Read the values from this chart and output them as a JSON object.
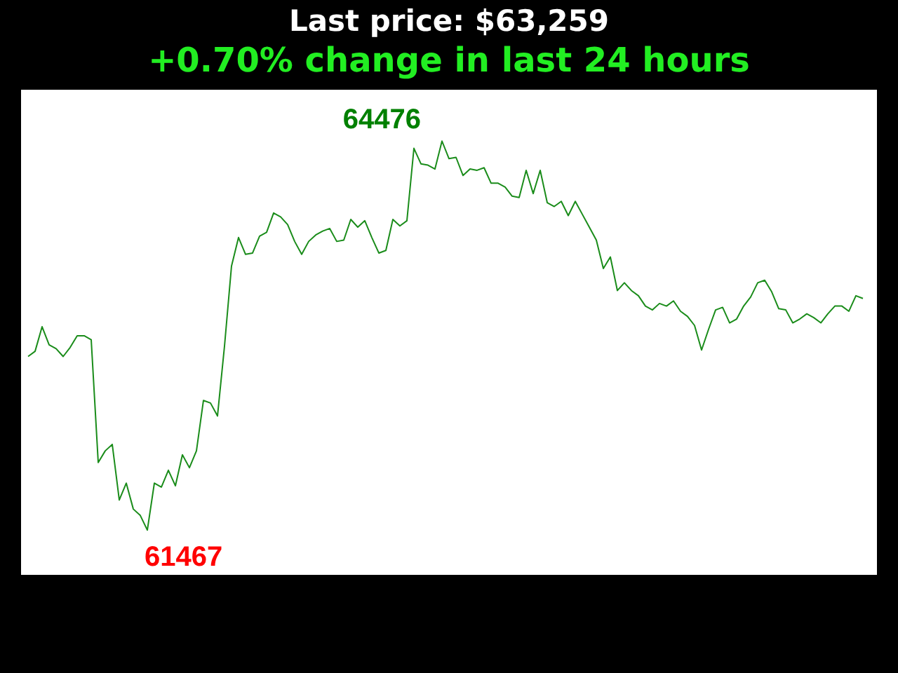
{
  "chart_data": {
    "type": "line",
    "title": "Last price: $63,259",
    "subtitle": "+0.70% change in last 24 hours",
    "categories": [
      null,
      null,
      null,
      null,
      null,
      null,
      null,
      null,
      null,
      null,
      null,
      null,
      null,
      null,
      null,
      null,
      null,
      null,
      null,
      null,
      null,
      null,
      null,
      null,
      null,
      null,
      null,
      null,
      null,
      null,
      null,
      null,
      null,
      null,
      null,
      null,
      null,
      null,
      null,
      null,
      null,
      null,
      null,
      null,
      null,
      null,
      null,
      null,
      null,
      null,
      null,
      null,
      null,
      null,
      null,
      null,
      null,
      null,
      null,
      null,
      null,
      null,
      null,
      null,
      null,
      null,
      null,
      null,
      null,
      null,
      null,
      null,
      null,
      null,
      null,
      null,
      null,
      null,
      null,
      null,
      null,
      null,
      null,
      null,
      null,
      null,
      null,
      null,
      null,
      null,
      null,
      null,
      null,
      null,
      null,
      null,
      null,
      null,
      null,
      null,
      null,
      null,
      null,
      null,
      null,
      null,
      null,
      null,
      null,
      null,
      null,
      null,
      null,
      null,
      null,
      null,
      null,
      null,
      null,
      null
    ],
    "values": [
      62810,
      62850,
      63040,
      62900,
      62870,
      62810,
      62880,
      62970,
      62970,
      62940,
      61990,
      62080,
      62130,
      61700,
      61830,
      61630,
      61580,
      61467,
      61830,
      61800,
      61930,
      61810,
      62050,
      61950,
      62080,
      62470,
      62450,
      62350,
      62890,
      63510,
      63730,
      63600,
      63610,
      63740,
      63770,
      63920,
      63890,
      63830,
      63700,
      63600,
      63700,
      63750,
      63780,
      63800,
      63700,
      63710,
      63870,
      63810,
      63860,
      63730,
      63610,
      63630,
      63870,
      63820,
      63860,
      64420,
      64300,
      64290,
      64260,
      64476,
      64340,
      64350,
      64210,
      64260,
      64250,
      64270,
      64150,
      64150,
      64120,
      64050,
      64040,
      64250,
      64070,
      64250,
      64000,
      63970,
      64010,
      63900,
      64010,
      63910,
      63810,
      63710,
      63490,
      63580,
      63320,
      63380,
      63320,
      63280,
      63200,
      63170,
      63220,
      63200,
      63240,
      63160,
      63120,
      63050,
      62860,
      63020,
      63170,
      63190,
      63070,
      63100,
      63200,
      63270,
      63380,
      63400,
      63310,
      63180,
      63170,
      63070,
      63100,
      63140,
      63110,
      63070,
      63140,
      63200,
      63200,
      63160,
      63280,
      63259
    ],
    "value_labels": [
      null,
      null,
      null,
      null,
      null,
      null,
      null,
      null,
      null,
      null,
      null,
      null,
      null,
      null,
      null,
      null,
      null,
      "61467",
      null,
      null,
      null,
      null,
      null,
      null,
      null,
      null,
      null,
      null,
      null,
      null,
      null,
      null,
      null,
      null,
      null,
      null,
      null,
      null,
      null,
      null,
      null,
      null,
      null,
      null,
      null,
      null,
      null,
      null,
      null,
      null,
      null,
      null,
      null,
      null,
      null,
      null,
      null,
      null,
      null,
      "64476",
      null,
      null,
      null,
      null,
      null,
      null,
      null,
      null,
      null,
      null,
      null,
      null,
      null,
      null,
      null,
      null,
      null,
      null,
      null,
      null,
      null,
      null,
      null,
      null,
      null,
      null,
      null,
      null,
      null,
      null,
      null,
      null,
      null,
      null,
      null,
      null,
      null,
      null,
      null,
      null,
      null,
      null,
      null,
      null,
      null,
      null,
      null,
      null,
      null,
      null,
      null,
      null,
      null,
      null,
      null,
      null,
      null,
      null,
      null,
      null
    ],
    "color": "#1a8c1a"
  }
}
